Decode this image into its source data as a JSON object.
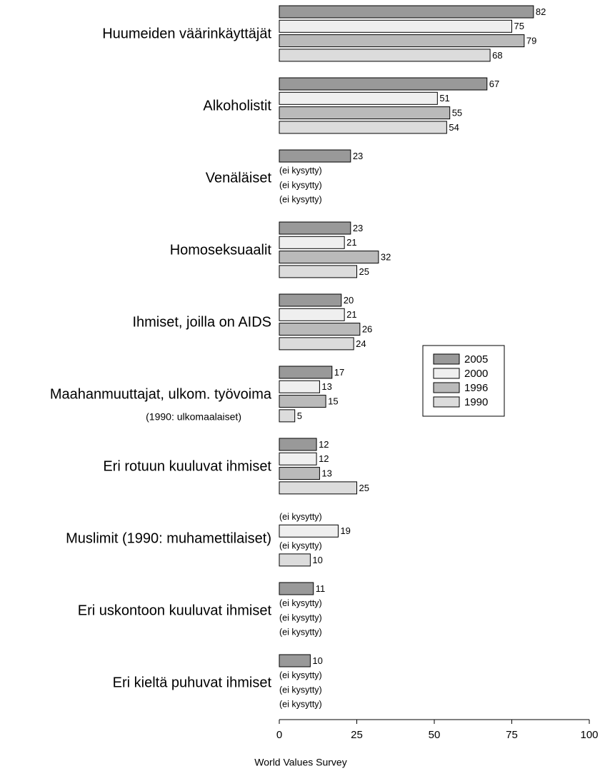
{
  "chart_data": {
    "type": "bar",
    "orientation": "horizontal",
    "categories": [
      "Huumeiden väärinkäyttäjät",
      "Alkoholistit",
      "Venäläiset",
      "Homoseksuaalit",
      "Ihmiset, joilla on AIDS",
      "Maahanmuuttajat, ulkom. työvoima",
      "Eri rotuun kuuluvat ihmiset",
      "Muslimit (1990: muhamettilaiset)",
      "Eri uskontoon kuuluvat ihmiset",
      "Eri kieltä puhuvat ihmiset"
    ],
    "category_notes": [
      null,
      null,
      null,
      null,
      null,
      "(1990: ulkomaalaiset)",
      null,
      null,
      null,
      null
    ],
    "series": [
      {
        "name": "2005",
        "color": "#999999",
        "values": [
          82,
          67,
          23,
          23,
          20,
          17,
          12,
          null,
          11,
          10
        ]
      },
      {
        "name": "2000",
        "color": "#efefef",
        "values": [
          75,
          51,
          null,
          21,
          21,
          13,
          12,
          19,
          null,
          null
        ]
      },
      {
        "name": "1996",
        "color": "#bababa",
        "values": [
          79,
          55,
          null,
          32,
          26,
          15,
          13,
          null,
          null,
          null
        ]
      },
      {
        "name": "1990",
        "color": "#dcdcdc",
        "values": [
          68,
          54,
          null,
          25,
          24,
          5,
          25,
          10,
          null,
          null
        ]
      }
    ],
    "missing_label": "(ei kysytty)",
    "xlim": [
      0,
      100
    ],
    "xticks": [
      0,
      25,
      50,
      75,
      100
    ],
    "source": "World Values Survey",
    "legend": "right"
  }
}
